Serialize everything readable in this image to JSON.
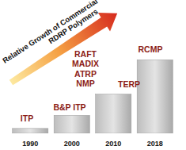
{
  "chart_data": {
    "type": "bar",
    "title": [
      "Relative Growth of Commercial",
      "RDRP Polymers"
    ],
    "categories": [
      "1990",
      "2000",
      "2010",
      "2018"
    ],
    "values": [
      6,
      22,
      48,
      90
    ],
    "ylim": [
      0,
      100
    ],
    "tick_labels": "x",
    "grid": false,
    "annotations": [
      {
        "lines": [
          "ITP"
        ]
      },
      {
        "lines": [
          "B&P ITP"
        ]
      },
      {
        "lines": [
          "RAFT",
          "MADIX",
          "ATRP",
          "NMP"
        ]
      },
      {
        "lines": [
          "TERP"
        ]
      },
      {
        "lines": [
          "RCMP"
        ]
      }
    ]
  }
}
